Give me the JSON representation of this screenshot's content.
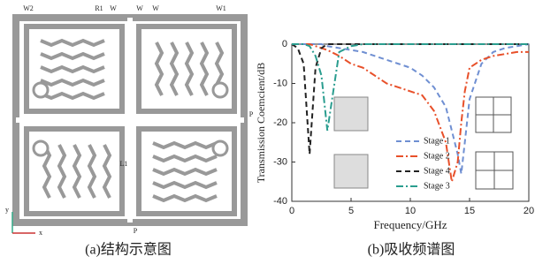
{
  "diagram": {
    "labels": [
      "W2",
      "R1",
      "W",
      "W",
      "W",
      "W1",
      "P",
      "P",
      "L1",
      "y",
      "x"
    ],
    "caption": "(a)结构示意图"
  },
  "chart_data": {
    "type": "line",
    "caption": "(b)吸收频谱图",
    "x_label": "Frequency/GHz",
    "y_label": "Transmission Coemcient/dB",
    "xlim": [
      0,
      20
    ],
    "xticks": [
      0,
      5,
      10,
      15,
      20
    ],
    "ylim": [
      -40,
      0
    ],
    "yticks": [
      0,
      -10,
      -20,
      -30,
      -40
    ],
    "x": [
      0,
      0.5,
      1,
      1.5,
      2,
      2.5,
      3,
      4,
      5,
      6,
      7,
      8,
      9,
      10,
      11,
      12,
      13,
      13.5,
      14,
      14.3,
      14.6,
      15,
      16,
      17,
      18,
      19,
      20
    ],
    "series": [
      {
        "name": "Stage 1",
        "color": "#6f8fd2",
        "line_style": "dashed",
        "values": [
          0,
          0,
          0,
          0,
          0,
          0,
          -0.5,
          -1,
          -1.5,
          -2,
          -3,
          -4,
          -5,
          -6,
          -8,
          -11,
          -16,
          -22,
          -28,
          -33,
          -25,
          -14,
          -5,
          -2,
          -1,
          -0.5,
          0
        ]
      },
      {
        "name": "Stage 2",
        "color": "#e8502a",
        "line_style": "dashdot",
        "values": [
          0,
          0,
          0,
          0,
          -0.5,
          -1,
          -1.5,
          -3,
          -5,
          -6,
          -8,
          -10,
          -11,
          -12,
          -13,
          -17,
          -25,
          -35,
          -30,
          -20,
          -12,
          -6,
          -4,
          -3,
          -2.5,
          -2,
          -2
        ]
      },
      {
        "name": "Stage 4",
        "color": "#222222",
        "line_style": "dashed",
        "values": [
          0,
          -1,
          -5,
          -28,
          -6,
          -1,
          0,
          0,
          0,
          0,
          0,
          0,
          0,
          0,
          0,
          0,
          0,
          0,
          0,
          0,
          0,
          0,
          0,
          0,
          0,
          0,
          0
        ]
      },
      {
        "name": "Stage 3",
        "color": "#2a9d8f",
        "line_style": "dashdot",
        "values": [
          0,
          0,
          0,
          -0.5,
          -3,
          -8,
          -22,
          -2,
          -0.5,
          0,
          0,
          0,
          0,
          0,
          0,
          0,
          0,
          0,
          0,
          0,
          0,
          0,
          0,
          0,
          0,
          0,
          0
        ]
      }
    ]
  }
}
